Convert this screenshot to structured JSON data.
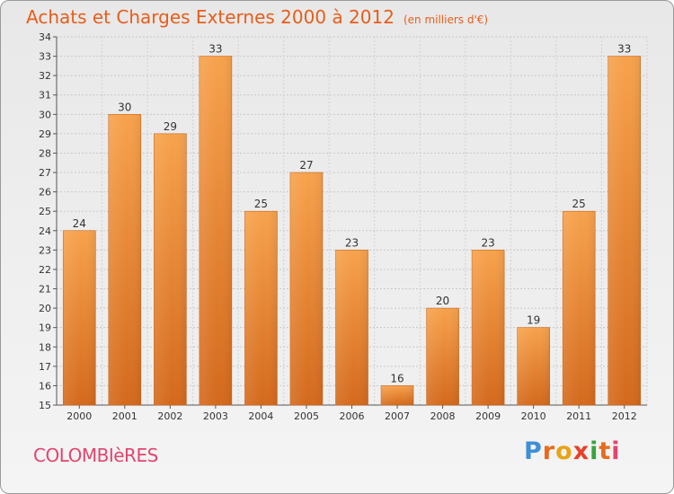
{
  "header": {
    "title": "Achats et Charges Externes 2000 à 2012",
    "subtitle": "(en milliers d'€)"
  },
  "footer": {
    "commune": "COLOMBIèRES",
    "brand": "Proxiti",
    "brand_colors": [
      "#3d8fd6",
      "#e86a1c",
      "#e8a317",
      "#e8402a",
      "#3aa33d",
      "#e86a1c",
      "#e0466e"
    ]
  },
  "colors": {
    "bar_light": "#f5a04a",
    "bar_dark": "#d4691c",
    "text_accent": "#e85d1a"
  },
  "chart_data": {
    "type": "bar",
    "title": "Achats et Charges Externes 2000 à 2012",
    "subtitle": "(en milliers d'€)",
    "categories": [
      "2000",
      "2001",
      "2002",
      "2003",
      "2004",
      "2005",
      "2006",
      "2007",
      "2008",
      "2009",
      "2010",
      "2011",
      "2012"
    ],
    "values": [
      24,
      30,
      29,
      33,
      25,
      27,
      23,
      16,
      20,
      23,
      19,
      25,
      33
    ],
    "ylim": [
      15,
      34
    ],
    "yticks": [
      15,
      16,
      17,
      18,
      19,
      20,
      21,
      22,
      23,
      24,
      25,
      26,
      27,
      28,
      29,
      30,
      31,
      32,
      33,
      34
    ],
    "grid": true,
    "data_labels": true
  }
}
